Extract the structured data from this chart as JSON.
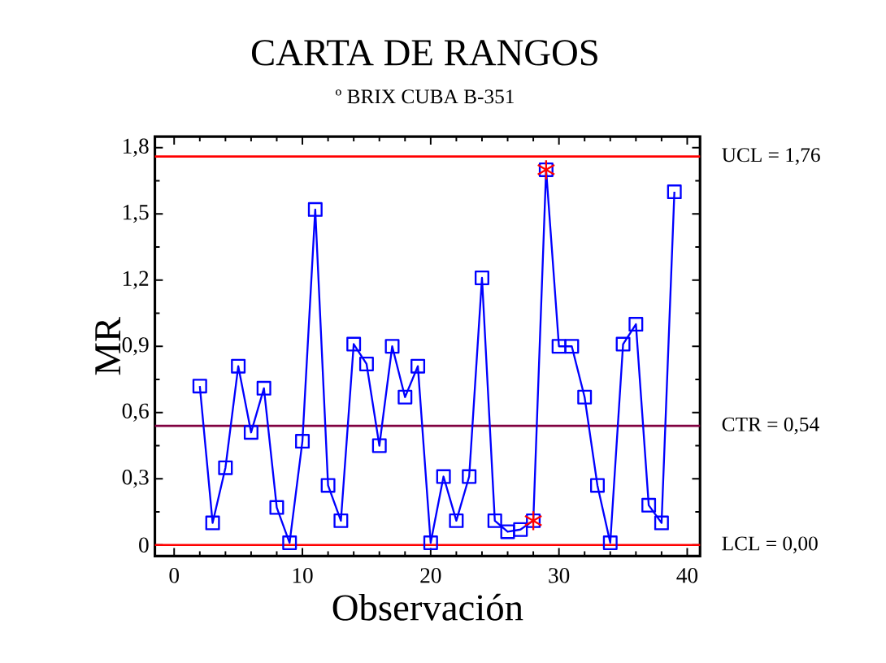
{
  "chart_data": {
    "type": "line",
    "title": "CARTA DE RANGOS",
    "subtitle": "º BRIX CUBA B-351",
    "xlabel": "Observación",
    "ylabel": "MR",
    "xlim": [
      -1.5,
      41
    ],
    "ylim": [
      -0.05,
      1.85
    ],
    "xticks": [
      0,
      10,
      20,
      30,
      40
    ],
    "yticks": [
      {
        "value": 0,
        "label": "0"
      },
      {
        "value": 0.3,
        "label": "0,3"
      },
      {
        "value": 0.6,
        "label": "0,6"
      },
      {
        "value": 0.9,
        "label": "0,9"
      },
      {
        "value": 1.2,
        "label": "1,2"
      },
      {
        "value": 1.5,
        "label": "1,5"
      },
      {
        "value": 1.8,
        "label": "1,8"
      }
    ],
    "series": [
      {
        "type": "line",
        "color": "#0000ff",
        "marker": "square",
        "x": [
          2,
          3,
          4,
          5,
          6,
          7,
          8,
          9,
          10,
          11,
          12,
          13,
          14,
          15,
          16,
          17,
          18,
          19,
          20,
          21,
          22,
          23,
          24,
          25,
          26,
          27,
          28,
          29,
          30,
          31,
          32,
          33,
          34,
          35,
          36,
          37,
          38,
          39
        ],
        "values": [
          0.72,
          0.1,
          0.35,
          0.81,
          0.51,
          0.71,
          0.17,
          0.01,
          0.47,
          1.52,
          0.27,
          0.11,
          0.91,
          0.82,
          0.45,
          0.9,
          0.67,
          0.81,
          0.01,
          0.31,
          0.11,
          0.31,
          1.21,
          0.11,
          0.06,
          0.07,
          0.11,
          1.7,
          0.9,
          0.9,
          0.67,
          0.27,
          0.01,
          0.91,
          1.0,
          0.18,
          0.1,
          1.6
        ]
      },
      {
        "type": "scatter",
        "color": "#ff0000",
        "marker": "cross",
        "x": [
          28,
          29
        ],
        "values": [
          0.11,
          1.7
        ]
      }
    ],
    "ref_lines": [
      {
        "axis": "y",
        "value": 1.76,
        "label": "UCL = 1,76",
        "color": "#ff0000"
      },
      {
        "axis": "y",
        "value": 0.54,
        "label": "CTR = 0,54",
        "color": "#800040"
      },
      {
        "axis": "y",
        "value": 0,
        "label": "LCL = 0,00",
        "color": "#ff0000"
      }
    ]
  }
}
